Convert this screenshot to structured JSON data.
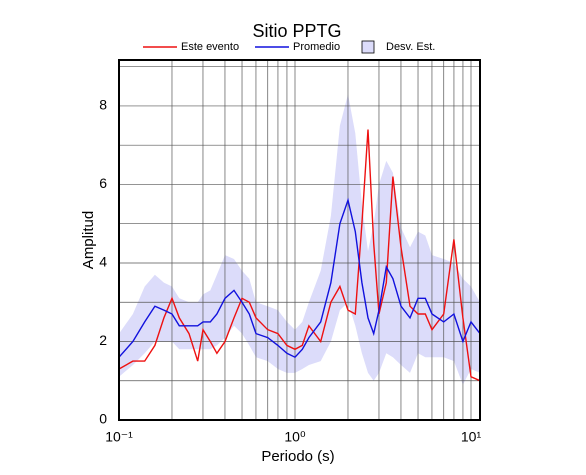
{
  "chart_data": {
    "type": "line",
    "title": "Sitio PPTG",
    "xlabel": "Periodo (s)",
    "ylabel": "Amplitud",
    "log_x": true,
    "grid": true,
    "legend": "top",
    "xlim": [
      0.1,
      11.25
    ],
    "ylim": [
      0,
      9.17
    ],
    "xticks": [
      {
        "value": 0.1,
        "label": "10⁻¹"
      },
      {
        "value": 1,
        "label": "10⁰"
      },
      {
        "value": 10,
        "label": "10¹"
      }
    ],
    "xminorticks": [
      0.2,
      0.3,
      0.4,
      0.5,
      0.6,
      0.7,
      0.8,
      0.9,
      2,
      3,
      4,
      5,
      6,
      7,
      8,
      9
    ],
    "yticks": [
      0,
      2,
      4,
      6,
      8
    ],
    "yminorticks": [
      1,
      3,
      5,
      7,
      9
    ],
    "x": [
      0.1,
      0.12,
      0.14,
      0.16,
      0.18,
      0.2,
      0.22,
      0.25,
      0.28,
      0.3,
      0.33,
      0.36,
      0.4,
      0.45,
      0.5,
      0.55,
      0.6,
      0.7,
      0.8,
      0.9,
      1.0,
      1.1,
      1.2,
      1.4,
      1.6,
      1.8,
      2.0,
      2.2,
      2.4,
      2.6,
      2.8,
      3.0,
      3.3,
      3.6,
      4.0,
      4.5,
      5,
      5.5,
      6,
      7,
      8,
      9,
      10,
      11.25
    ],
    "band": {
      "name": "Desv. Est.",
      "color": "#dcdcfa",
      "upper": [
        2.2,
        2.7,
        3.4,
        3.7,
        3.5,
        3.4,
        3.1,
        3.0,
        3.0,
        3.2,
        3.3,
        3.7,
        4.2,
        4.1,
        3.8,
        3.6,
        3.0,
        2.9,
        2.8,
        2.5,
        2.3,
        2.5,
        3.0,
        3.8,
        5.2,
        7.5,
        8.3,
        7.3,
        5.5,
        4.3,
        5.0,
        6.0,
        6.6,
        6.3,
        4.9,
        4.4,
        4.8,
        4.7,
        4.2,
        4.1,
        4.0,
        3.6,
        3.4,
        3.0
      ],
      "lower": [
        1.1,
        1.4,
        1.7,
        2.0,
        2.0,
        2.0,
        1.8,
        1.8,
        1.8,
        1.8,
        1.8,
        1.9,
        2.1,
        2.4,
        2.2,
        1.9,
        1.6,
        1.5,
        1.3,
        1.2,
        1.2,
        1.3,
        1.4,
        1.5,
        2.0,
        2.8,
        3.0,
        2.4,
        1.7,
        1.2,
        1.0,
        1.2,
        1.7,
        1.6,
        1.4,
        1.2,
        1.7,
        1.6,
        1.6,
        1.6,
        1.5,
        0.9,
        1.3,
        1.2
      ]
    },
    "series": [
      {
        "name": "Este evento",
        "color": "#ee1111",
        "values": [
          1.3,
          1.5,
          1.5,
          1.9,
          2.6,
          3.1,
          2.6,
          2.2,
          1.5,
          2.3,
          2.0,
          1.7,
          2.0,
          2.6,
          3.1,
          3.0,
          2.6,
          2.3,
          2.2,
          1.9,
          1.8,
          1.9,
          2.4,
          2.0,
          3.0,
          3.4,
          2.8,
          2.7,
          5.0,
          7.4,
          4.5,
          2.7,
          3.5,
          6.2,
          4.4,
          2.9,
          2.7,
          2.7,
          2.3,
          2.7,
          4.6,
          2.6,
          1.1,
          1.0
        ]
      },
      {
        "name": "Promedio",
        "color": "#1111dd",
        "values": [
          1.6,
          2.0,
          2.5,
          2.9,
          2.8,
          2.7,
          2.4,
          2.4,
          2.4,
          2.5,
          2.5,
          2.7,
          3.1,
          3.3,
          3.0,
          2.7,
          2.2,
          2.1,
          1.9,
          1.7,
          1.6,
          1.8,
          2.1,
          2.5,
          3.5,
          5.0,
          5.6,
          4.8,
          3.5,
          2.6,
          2.2,
          2.8,
          3.9,
          3.6,
          2.9,
          2.6,
          3.1,
          3.1,
          2.7,
          2.5,
          2.7,
          2.0,
          2.5,
          2.2
        ]
      }
    ]
  }
}
